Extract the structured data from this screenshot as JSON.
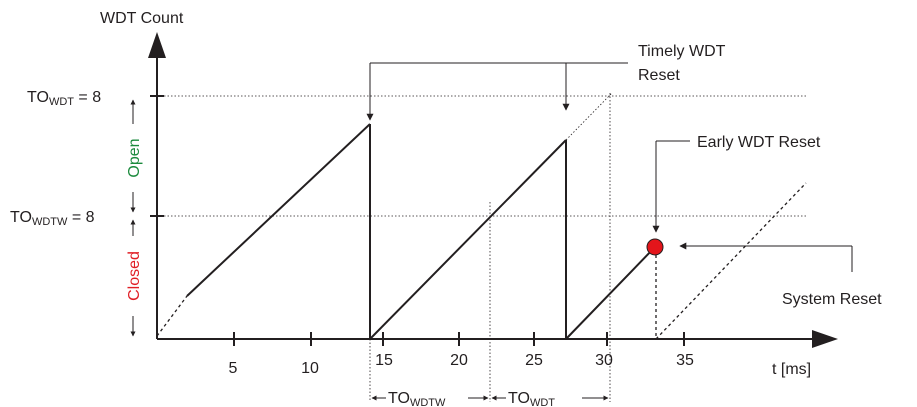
{
  "y_axis": {
    "label": "WDT Count",
    "to_wdt_prefix": "TO",
    "to_wdt_sub": "WDT",
    "to_wdt_value": " = 8",
    "to_wdtw_prefix": "TO",
    "to_wdtw_sub": "WDTW",
    "to_wdtw_value": " = 8"
  },
  "x_axis": {
    "label": "t [ms]",
    "ticks": [
      "5",
      "10",
      "15",
      "20",
      "25",
      "30",
      "35"
    ]
  },
  "window": {
    "open_label": "Open",
    "open_color": "#1a8a3c",
    "closed_label": "Closed",
    "closed_color": "#e01f26"
  },
  "annotations": {
    "timely_line1": "Timely WDT",
    "timely_line2": "Reset",
    "early": "Early WDT Reset",
    "early_dot_color": "#e3151b",
    "system_reset": "System Reset"
  },
  "intervals": {
    "wdtw_prefix": "TO",
    "wdtw_sub": "WDTW",
    "wdt_prefix": "TO",
    "wdt_sub": "WDT"
  }
}
